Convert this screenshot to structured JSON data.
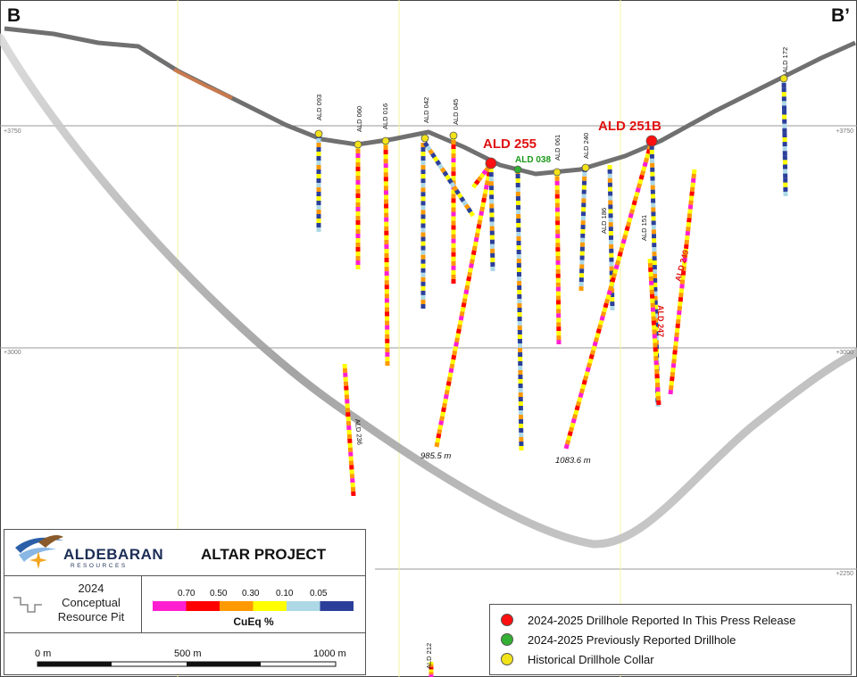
{
  "section": {
    "left_label": "B",
    "right_label": "B’",
    "elevations": [
      "+3750",
      "+3750",
      "+3000",
      "+3000",
      "+2250"
    ]
  },
  "drillholes": {
    "ald093": "ALD 093",
    "ald060": "ALD 060",
    "ald016": "ALD 016",
    "ald042": "ALD 042",
    "ald045": "ALD 045",
    "ald255": "ALD 255",
    "ald038": "ALD 038",
    "ald061": "ALD 061",
    "ald240": "ALD 240",
    "ald186": "ALD 186",
    "ald251b": "ALD 251B",
    "ald151": "ALD 151",
    "ald247": "ALD 247",
    "ald249": "ALD 249",
    "ald172": "ALD 172",
    "ald236": "ALD 236",
    "ald212": "ALD 212"
  },
  "depths": {
    "ald255": "985.5 m",
    "ald251b": "1083.6 m"
  },
  "logo": {
    "name": "ALDEBARAN",
    "sub": "RESOURCES"
  },
  "project_title": "ALTAR PROJECT",
  "pit_legend": {
    "year": "2024",
    "line1": "Conceptual",
    "line2": "Resource Pit"
  },
  "grade_legend": {
    "title": "CuEq %",
    "ticks": [
      "0.70",
      "0.50",
      "0.30",
      "0.10",
      "0.05"
    ],
    "colors": [
      "#ff1fd0",
      "#ff0000",
      "#ff9900",
      "#ffff00",
      "#add8e6",
      "#2b3f9a"
    ]
  },
  "scale_bar": {
    "labels": [
      "0 m",
      "500 m",
      "1000 m"
    ]
  },
  "legend": {
    "items": [
      {
        "label": "2024-2025 Drillhole Reported In This Press Release",
        "color": "#ff1010"
      },
      {
        "label": "2024-2025 Previously Reported Drillhole",
        "color": "#33b033"
      },
      {
        "label": "Historical Drillhole Collar",
        "color": "#f2e21a"
      }
    ]
  }
}
